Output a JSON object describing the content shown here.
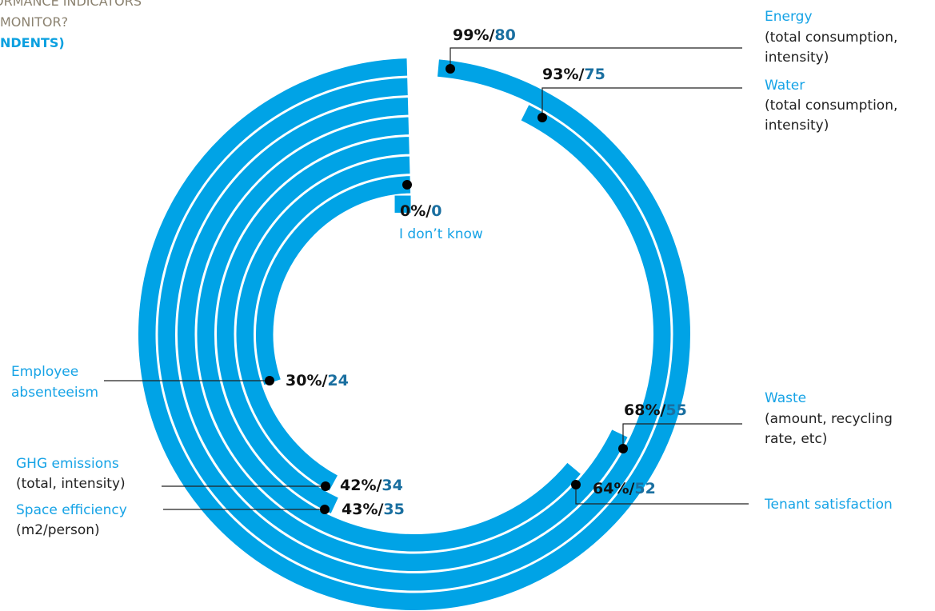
{
  "title_lines": [
    "ORMANCE INDICATORS",
    "MONITOR?",
    "NDENTS)"
  ],
  "chart_data": {
    "type": "radial-bar",
    "categories": [
      {
        "name": "Energy",
        "desc": [
          "(total consumption,",
          "intensity)"
        ],
        "percent": 99,
        "count": 80,
        "pct_label": "99%/",
        "count_label": "80"
      },
      {
        "name": "Water",
        "desc": [
          "(total consumption,",
          "intensity)"
        ],
        "percent": 93,
        "count": 75,
        "pct_label": "93%/",
        "count_label": "75"
      },
      {
        "name": "Waste",
        "desc": [
          "(amount, recycling",
          "rate, etc)"
        ],
        "percent": 68,
        "count": 55,
        "pct_label": "68%/",
        "count_label": "55"
      },
      {
        "name": "Tenant satisfaction",
        "desc": [],
        "percent": 64,
        "count": 52,
        "pct_label": "64%/",
        "count_label": "52"
      },
      {
        "name": "Space efficiency",
        "desc": [
          "(m2/person)"
        ],
        "percent": 43,
        "count": 35,
        "pct_label": "43%/",
        "count_label": "35"
      },
      {
        "name": "GHG emissions",
        "desc": [
          "(total, intensity)"
        ],
        "percent": 42,
        "count": 34,
        "pct_label": "42%/",
        "count_label": "34"
      },
      {
        "name": "Employee",
        "name2": "absenteeism",
        "desc": [],
        "percent": 30,
        "count": 24,
        "pct_label": "30%/",
        "count_label": "24"
      },
      {
        "name": "I don’t know",
        "desc": [],
        "percent": 0,
        "count": 0,
        "pct_label": "0%/",
        "count_label": "0"
      }
    ],
    "colors": {
      "bar": "#00a3e6",
      "label_name": "#16a3e6",
      "count": "#1a6fa0",
      "leader": "#222222"
    }
  }
}
